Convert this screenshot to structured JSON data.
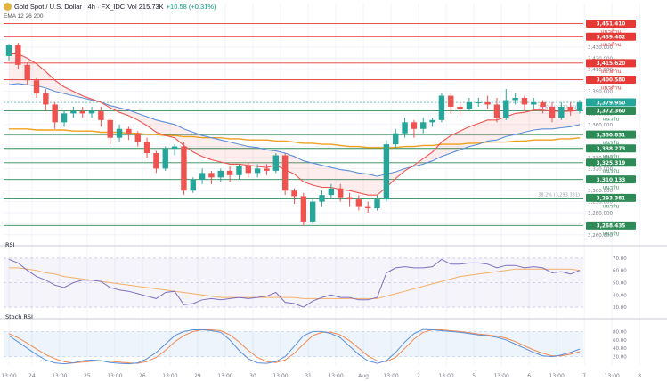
{
  "header": {
    "title": "Gold Spot / U.S. Dollar · 4h · FX_IDC",
    "volume": "Vol 215.73K",
    "change": "+10.58 (+0.31%)",
    "ema_label": "EMA 12 26 200"
  },
  "colors": {
    "up": "#26a69a",
    "down": "#ef5350",
    "resistance": "#e53935",
    "support": "#2e8b57",
    "ema_fast": "#ef5350",
    "ema_slow": "#5b8fd8",
    "ema_200": "#f0a020",
    "rsi_line": "#7e6fbf",
    "rsi_ma": "#f3b06a",
    "stoch_k": "#5b8fd8",
    "stoch_d": "#f08a50"
  },
  "chart_data": {
    "type": "candlestick",
    "title": "Gold Spot / U.S. Dollar · 4h · FX_IDC",
    "ylim": [
      3255,
      3455
    ],
    "y_ticks": [
      3260,
      3270,
      3280,
      3290,
      3300,
      3310,
      3320,
      3330,
      3340,
      3350,
      3360,
      3370,
      3380,
      3390,
      3400,
      3410,
      3420,
      3430
    ],
    "x_ticks": [
      {
        "i": 0,
        "label": "13:00"
      },
      {
        "i": 2.5,
        "label": "24"
      },
      {
        "i": 5.5,
        "label": "13:00"
      },
      {
        "i": 8.5,
        "label": "25"
      },
      {
        "i": 11.5,
        "label": "13:00"
      },
      {
        "i": 14.5,
        "label": "26"
      },
      {
        "i": 17.5,
        "label": "13:00"
      },
      {
        "i": 20.5,
        "label": "29"
      },
      {
        "i": 23.5,
        "label": "13:00"
      },
      {
        "i": 26.5,
        "label": "30"
      },
      {
        "i": 29.5,
        "label": "13:00"
      },
      {
        "i": 32.5,
        "label": "31"
      },
      {
        "i": 35.5,
        "label": "13:00"
      },
      {
        "i": 38.5,
        "label": "Aug"
      },
      {
        "i": 41.5,
        "label": "13:00"
      },
      {
        "i": 44.5,
        "label": "2"
      },
      {
        "i": 47.5,
        "label": "13:00"
      },
      {
        "i": 50.5,
        "label": "5"
      },
      {
        "i": 53.5,
        "label": "13:00"
      },
      {
        "i": 56.5,
        "label": "6"
      },
      {
        "i": 59.5,
        "label": "13:00"
      },
      {
        "i": 62.5,
        "label": "7"
      },
      {
        "i": 65.5,
        "label": "13:00"
      },
      {
        "i": 68.5,
        "label": "8"
      }
    ],
    "candles": [
      [
        3422,
        3432,
        3418,
        3433
      ],
      [
        3432,
        3414,
        3410,
        3434
      ],
      [
        3414,
        3400,
        3396,
        3416
      ],
      [
        3400,
        3388,
        3384,
        3402
      ],
      [
        3388,
        3378,
        3372,
        3392
      ],
      [
        3378,
        3362,
        3356,
        3380
      ],
      [
        3362,
        3370,
        3358,
        3372
      ],
      [
        3370,
        3372,
        3366,
        3376
      ],
      [
        3372,
        3370,
        3366,
        3376
      ],
      [
        3370,
        3372,
        3366,
        3376
      ],
      [
        3372,
        3364,
        3358,
        3376
      ],
      [
        3364,
        3348,
        3342,
        3366
      ],
      [
        3348,
        3356,
        3344,
        3360
      ],
      [
        3356,
        3352,
        3346,
        3358
      ],
      [
        3352,
        3344,
        3340,
        3354
      ],
      [
        3344,
        3334,
        3330,
        3348
      ],
      [
        3334,
        3320,
        3316,
        3336
      ],
      [
        3320,
        3338,
        3318,
        3340
      ],
      [
        3338,
        3340,
        3332,
        3342
      ],
      [
        3340,
        3300,
        3296,
        3344
      ],
      [
        3300,
        3310,
        3298,
        3312
      ],
      [
        3310,
        3316,
        3306,
        3320
      ],
      [
        3316,
        3312,
        3306,
        3318
      ],
      [
        3312,
        3318,
        3308,
        3320
      ],
      [
        3318,
        3314,
        3308,
        3322
      ],
      [
        3314,
        3322,
        3310,
        3324
      ],
      [
        3322,
        3316,
        3312,
        3326
      ],
      [
        3316,
        3320,
        3312,
        3324
      ],
      [
        3320,
        3318,
        3314,
        3324
      ],
      [
        3318,
        3332,
        3316,
        3334
      ],
      [
        3332,
        3300,
        3296,
        3334
      ],
      [
        3300,
        3295,
        3288,
        3302
      ],
      [
        3295,
        3272,
        3268,
        3298
      ],
      [
        3272,
        3290,
        3270,
        3292
      ],
      [
        3290,
        3296,
        3286,
        3300
      ],
      [
        3296,
        3302,
        3292,
        3306
      ],
      [
        3302,
        3294,
        3290,
        3306
      ],
      [
        3294,
        3292,
        3286,
        3298
      ],
      [
        3292,
        3286,
        3282,
        3296
      ],
      [
        3286,
        3284,
        3280,
        3290
      ],
      [
        3284,
        3292,
        3282,
        3296
      ],
      [
        3292,
        3342,
        3290,
        3346
      ],
      [
        3342,
        3352,
        3338,
        3356
      ],
      [
        3352,
        3362,
        3348,
        3366
      ],
      [
        3362,
        3356,
        3348,
        3364
      ],
      [
        3356,
        3362,
        3352,
        3366
      ],
      [
        3362,
        3364,
        3358,
        3366
      ],
      [
        3364,
        3386,
        3362,
        3388
      ],
      [
        3386,
        3376,
        3370,
        3388
      ],
      [
        3376,
        3374,
        3368,
        3380
      ],
      [
        3374,
        3380,
        3372,
        3384
      ],
      [
        3380,
        3380,
        3376,
        3384
      ],
      [
        3380,
        3378,
        3374,
        3386
      ],
      [
        3378,
        3366,
        3362,
        3384
      ],
      [
        3366,
        3382,
        3364,
        3392
      ],
      [
        3382,
        3384,
        3378,
        3388
      ],
      [
        3384,
        3378,
        3372,
        3386
      ],
      [
        3378,
        3380,
        3374,
        3384
      ],
      [
        3380,
        3376,
        3370,
        3382
      ],
      [
        3376,
        3366,
        3362,
        3380
      ],
      [
        3366,
        3376,
        3364,
        3380
      ],
      [
        3376,
        3372,
        3368,
        3380
      ],
      [
        3372,
        3380,
        3370,
        3382
      ]
    ],
    "ema_fast": [
      3424,
      3424,
      3420,
      3415,
      3408,
      3400,
      3394,
      3390,
      3386,
      3383,
      3380,
      3375,
      3371,
      3368,
      3364,
      3359,
      3353,
      3350,
      3348,
      3341,
      3335,
      3331,
      3328,
      3326,
      3324,
      3324,
      3323,
      3322,
      3321,
      3323,
      3319,
      3315,
      3308,
      3305,
      3303,
      3303,
      3301,
      3300,
      3298,
      3296,
      3296,
      3303,
      3311,
      3318,
      3323,
      3329,
      3335,
      3344,
      3350,
      3354,
      3358,
      3361,
      3364,
      3364,
      3367,
      3370,
      3371,
      3373,
      3373,
      3372,
      3372,
      3372,
      3373
    ],
    "ema_slow": [
      3396,
      3397,
      3396,
      3395,
      3393,
      3390,
      3388,
      3386,
      3384,
      3382,
      3380,
      3377,
      3375,
      3373,
      3370,
      3367,
      3364,
      3362,
      3360,
      3356,
      3353,
      3350,
      3348,
      3346,
      3344,
      3342,
      3340,
      3339,
      3337,
      3336,
      3334,
      3331,
      3327,
      3325,
      3323,
      3321,
      3319,
      3318,
      3316,
      3315,
      3313,
      3315,
      3317,
      3320,
      3322,
      3324,
      3327,
      3331,
      3334,
      3337,
      3340,
      3342,
      3345,
      3346,
      3349,
      3351,
      3353,
      3355,
      3356,
      3356,
      3357,
      3358,
      3360
    ],
    "ema_200": [
      3356,
      3356,
      3356,
      3355,
      3355,
      3355,
      3355,
      3354,
      3354,
      3354,
      3353,
      3353,
      3353,
      3352,
      3352,
      3351,
      3351,
      3350,
      3350,
      3349,
      3349,
      3348,
      3348,
      3348,
      3347,
      3347,
      3346,
      3346,
      3346,
      3345,
      3345,
      3344,
      3343,
      3343,
      3342,
      3342,
      3341,
      3340,
      3340,
      3339,
      3339,
      3339,
      3339,
      3340,
      3340,
      3341,
      3341,
      3342,
      3342,
      3342,
      3343,
      3343,
      3344,
      3344,
      3344,
      3345,
      3345,
      3346,
      3346,
      3346,
      3347,
      3347,
      3348
    ],
    "levels": [
      {
        "price": "3,451.410",
        "v": 3451.41,
        "kind": "resistance",
        "tag": "แนวต้าน"
      },
      {
        "price": "3,439.482",
        "v": 3439.48,
        "kind": "resistance",
        "tag": "แนวต้าน"
      },
      {
        "price": "3,415.620",
        "v": 3415.62,
        "kind": "resistance",
        "tag": "แนวต้าน"
      },
      {
        "price": "3,400.580",
        "v": 3400.58,
        "kind": "resistance",
        "tag": "แนวต้าน"
      },
      {
        "price": "3,372.360",
        "v": 3372.36,
        "kind": "support",
        "tag": "แนวรับ"
      },
      {
        "price": "3,350.831",
        "v": 3350.83,
        "kind": "support",
        "tag": "แนวรับ"
      },
      {
        "price": "3,338.273",
        "v": 3338.27,
        "kind": "support",
        "tag": "แนวรับ"
      },
      {
        "price": "3,325.319",
        "v": 3325.32,
        "kind": "support",
        "tag": "แนวรับ"
      },
      {
        "price": "3,310.133",
        "v": 3310.13,
        "kind": "support",
        "tag": "แนวรับ"
      },
      {
        "price": "3,293.381",
        "v": 3293.38,
        "kind": "support",
        "tag": "แนวรับ"
      },
      {
        "price": "3,268.435",
        "v": 3268.44,
        "kind": "support",
        "tag": "แนวรับ"
      }
    ],
    "current_price": {
      "price": "3,379.950",
      "v": 3379.95
    },
    "fib_labels": [
      {
        "text": "23.6% (3,372.360)",
        "v": 3372.36
      },
      {
        "text": "38.2% (3,293.381)",
        "v": 3293.38
      }
    ],
    "rsi": {
      "label": "RSI",
      "ylim": [
        25,
        75
      ],
      "ticks": [
        30,
        40,
        50,
        60,
        70
      ],
      "values": [
        69,
        66,
        60,
        55,
        52,
        48,
        46,
        50,
        52,
        52,
        51,
        46,
        44,
        43,
        41,
        39,
        37,
        42,
        43,
        32,
        33,
        36,
        37,
        36,
        37,
        38,
        37,
        38,
        39,
        42,
        34,
        33,
        30,
        35,
        38,
        40,
        38,
        38,
        36,
        36,
        38,
        58,
        62,
        63,
        62,
        62,
        63,
        69,
        65,
        65,
        66,
        66,
        65,
        62,
        64,
        64,
        62,
        63,
        62,
        58,
        59,
        57,
        60
      ],
      "ma": [
        62,
        62,
        61,
        60,
        58,
        57,
        55,
        54,
        53,
        52,
        51,
        50,
        49,
        48,
        47,
        46,
        45,
        44,
        43,
        42,
        41,
        40,
        39,
        38,
        38,
        38,
        38,
        38,
        38,
        38,
        38,
        38,
        37,
        37,
        37,
        37,
        37,
        37,
        37,
        37,
        37,
        39,
        41,
        43,
        45,
        47,
        49,
        51,
        53,
        55,
        56,
        57,
        58,
        59,
        60,
        61,
        61,
        61,
        61,
        61,
        61,
        61,
        60
      ]
    },
    "stoch": {
      "label": "Stoch RSI",
      "ylim": [
        0,
        100
      ],
      "ticks": [
        20,
        40,
        60,
        80
      ],
      "k": [
        70,
        55,
        40,
        25,
        12,
        5,
        3,
        5,
        10,
        12,
        10,
        6,
        4,
        3,
        5,
        15,
        30,
        50,
        70,
        80,
        84,
        84,
        82,
        78,
        60,
        35,
        15,
        5,
        4,
        8,
        20,
        45,
        70,
        80,
        80,
        75,
        65,
        45,
        25,
        10,
        4,
        10,
        30,
        55,
        75,
        85,
        84,
        82,
        80,
        78,
        75,
        72,
        70,
        66,
        60,
        50,
        40,
        30,
        22,
        20,
        24,
        30,
        38
      ],
      "d": [
        75,
        65,
        52,
        38,
        25,
        15,
        8,
        5,
        7,
        9,
        10,
        9,
        7,
        5,
        4,
        8,
        18,
        35,
        55,
        70,
        80,
        84,
        84,
        82,
        72,
        55,
        35,
        18,
        8,
        6,
        12,
        28,
        50,
        70,
        78,
        78,
        72,
        58,
        40,
        22,
        10,
        8,
        18,
        40,
        62,
        78,
        84,
        84,
        82,
        80,
        77,
        74,
        72,
        69,
        64,
        56,
        46,
        36,
        28,
        22,
        22,
        26,
        32
      ]
    }
  }
}
